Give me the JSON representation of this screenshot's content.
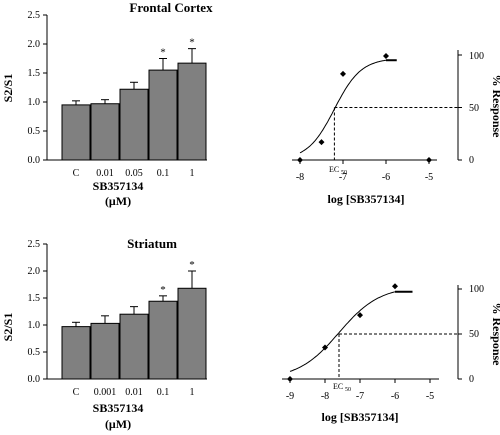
{
  "panels": [
    {
      "title": "Frontal Cortex",
      "bar": {
        "ylabel": "S2/S1",
        "yticks": [
          "0.0",
          "0.5",
          "1.0",
          "1.5",
          "2.0",
          "2.5"
        ],
        "xlabel_line1": "SB357134",
        "xlabel_line2": "(μM)"
      },
      "curve": {
        "xlabel": "log [SB357134]",
        "ylabel": "% Response",
        "xticks": [
          "-8",
          "-7",
          "-6",
          "-5"
        ],
        "yticks": [
          "0",
          "50",
          "100"
        ],
        "ec50_label": "EC",
        "ec50_sub": "50"
      }
    },
    {
      "title": "Striatum",
      "bar": {
        "ylabel": "S2/S1",
        "yticks": [
          "0.0",
          "0.5",
          "1.0",
          "1.5",
          "2.0",
          "2.5"
        ],
        "xlabel_line1": "SB357134",
        "xlabel_line2": "(μM)"
      },
      "curve": {
        "xlabel": "log [SB357134]",
        "ylabel": "% Response",
        "xticks": [
          "-9",
          "-8",
          "-7",
          "-6",
          "-5"
        ],
        "yticks": [
          "0",
          "50",
          "100"
        ],
        "ec50_label": "EC",
        "ec50_sub": "50"
      }
    }
  ],
  "chart_data": [
    {
      "type": "bar",
      "panel": "Frontal Cortex",
      "categories": [
        "C",
        "0.01",
        "0.05",
        "0.1",
        "1"
      ],
      "values": [
        0.95,
        0.97,
        1.22,
        1.55,
        1.67
      ],
      "errors": [
        0.07,
        0.07,
        0.12,
        0.2,
        0.25
      ],
      "significant": [
        false,
        false,
        false,
        true,
        true
      ],
      "significance_marker": "*",
      "ylabel": "S2/S1",
      "xlabel": "SB357134 (μM)",
      "ylim": [
        0,
        2.5
      ],
      "bar_color": "#808080"
    },
    {
      "type": "line",
      "panel": "Frontal Cortex",
      "points": [
        {
          "x": -8,
          "y": 0
        },
        {
          "x": -7.5,
          "y": 17
        },
        {
          "x": -7,
          "y": 82
        },
        {
          "x": -6,
          "y": 99
        },
        {
          "x": -5,
          "y": 0
        }
      ],
      "fit": {
        "bottom": 0,
        "top": 97,
        "logEC50": -7.2,
        "hill": 1.4
      },
      "ec50_log": -7.2,
      "xlim": [
        -8.2,
        -4.9
      ],
      "ylim": [
        0,
        110
      ],
      "xlabel": "log [SB357134]",
      "ylabel": "% Response"
    },
    {
      "type": "bar",
      "panel": "Striatum",
      "categories": [
        "C",
        "0.001",
        "0.01",
        "0.1",
        "1"
      ],
      "values": [
        0.97,
        1.03,
        1.2,
        1.44,
        1.68
      ],
      "errors": [
        0.08,
        0.14,
        0.14,
        0.1,
        0.32
      ],
      "significant": [
        false,
        false,
        false,
        true,
        true
      ],
      "significance_marker": "*",
      "ylabel": "S2/S1",
      "xlabel": "SB357134 (μM)",
      "ylim": [
        0,
        2.5
      ],
      "bar_color": "#808080"
    },
    {
      "type": "line",
      "panel": "Striatum",
      "points": [
        {
          "x": -9,
          "y": 0
        },
        {
          "x": -8,
          "y": 35
        },
        {
          "x": -7,
          "y": 71
        },
        {
          "x": -6,
          "y": 103
        }
      ],
      "fit": {
        "bottom": 0,
        "top": 103,
        "logEC50": -7.6,
        "hill": 0.75
      },
      "ec50_log": -7.6,
      "xlim": [
        -9.2,
        -4.9
      ],
      "ylim": [
        0,
        110
      ],
      "xlabel": "log [SB357134]",
      "ylabel": "% Response"
    }
  ]
}
